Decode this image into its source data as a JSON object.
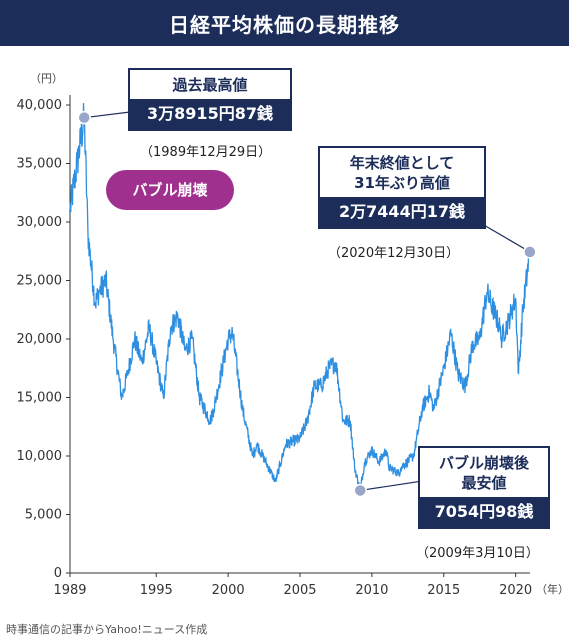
{
  "title": "日経平均株価の長期推移",
  "source": "時事通信の記事からYahoo!ニュース作成",
  "colors": {
    "header": "#1c2d5a",
    "line": "#2e8fe0",
    "marker": "#9aa6c8",
    "bubble": "#a0308e"
  },
  "chart_data": {
    "type": "line",
    "title": "日経平均株価の長期推移",
    "y_unit": "（円）",
    "x_unit": "（年）",
    "ylim": [
      0,
      40000
    ],
    "xlim": [
      1989,
      2021
    ],
    "y_ticks": [
      "0",
      "5,000",
      "10,000",
      "15,000",
      "20,000",
      "25,000",
      "30,000",
      "35,000",
      "40,000"
    ],
    "x_ticks": [
      "1989",
      "1995",
      "2000",
      "2005",
      "2010",
      "2015",
      "2020"
    ],
    "grid": false,
    "series": [
      {
        "x": [
          1989.0,
          1989.5,
          1989.99,
          1990.25,
          1990.75,
          1991.0,
          1991.5,
          1992.0,
          1992.6,
          1993.0,
          1993.5,
          1994.0,
          1994.5,
          1995.0,
          1995.5,
          1996.0,
          1996.5,
          1997.0,
          1997.5,
          1998.0,
          1998.75,
          1999.0,
          2000.0,
          2000.3,
          2001.0,
          2001.7,
          2002.0,
          2003.3,
          2004.0,
          2005.0,
          2005.5,
          2006.0,
          2006.5,
          2007.0,
          2007.5,
          2008.0,
          2008.5,
          2008.8,
          2009.19,
          2009.5,
          2010.0,
          2010.5,
          2011.0,
          2011.2,
          2011.9,
          2012.0,
          2012.9,
          2013.5,
          2014.0,
          2014.3,
          2015.0,
          2015.5,
          2016.0,
          2016.5,
          2017.0,
          2017.5,
          2018.0,
          2018.9,
          2019.0,
          2019.5,
          2020.0,
          2020.2,
          2020.5,
          2020.99
        ],
        "y": [
          31000,
          35000,
          38915.87,
          29000,
          23000,
          24000,
          25000,
          20000,
          15000,
          17000,
          20000,
          18000,
          21000,
          18000,
          15000,
          21000,
          22000,
          19000,
          20000,
          15000,
          13000,
          14000,
          20000,
          20500,
          14000,
          10000,
          11000,
          7800,
          11000,
          11500,
          13000,
          16000,
          16000,
          17500,
          18000,
          13000,
          13000,
          9000,
          7054.98,
          9500,
          10500,
          9500,
          10500,
          9000,
          8500,
          9000,
          10000,
          14000,
          15500,
          14000,
          17500,
          20500,
          17000,
          16000,
          19500,
          20000,
          24000,
          21000,
          20000,
          21500,
          23500,
          17000,
          22500,
          27444.17
        ]
      }
    ],
    "annotations": [
      {
        "title": "過去最高値",
        "value": "3万8915円87銭",
        "date": "（1989年12月29日）",
        "x": 1989.99,
        "y": 38915.87
      },
      {
        "title": "年末終値として\n31年ぶり高値",
        "value": "2万7444円17銭",
        "date": "（2020年12月30日）",
        "x": 2020.99,
        "y": 27444.17
      },
      {
        "title": "バブル崩壊後\n最安値",
        "value": "7054円98銭",
        "date": "（2009年3月10日）",
        "x": 2009.19,
        "y": 7054.98
      }
    ],
    "label": "バブル崩壊"
  }
}
